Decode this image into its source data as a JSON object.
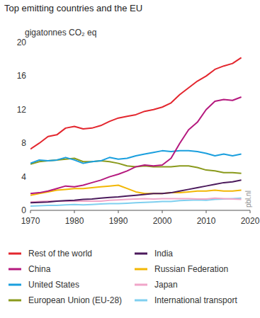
{
  "chart_data": {
    "type": "line",
    "title": "Top emitting countries and the EU",
    "y_label": "gigatonnes CO₂ eq",
    "annotations": [
      "pbl.nl"
    ],
    "x": [
      1970,
      1972,
      1974,
      1976,
      1978,
      1980,
      1982,
      1984,
      1986,
      1988,
      1990,
      1992,
      1994,
      1996,
      1998,
      2000,
      2002,
      2004,
      2006,
      2008,
      2010,
      2012,
      2014,
      2016,
      2018
    ],
    "xlim": [
      1970,
      2020
    ],
    "xticks": [
      1970,
      1980,
      1990,
      2000,
      2010,
      2020
    ],
    "ylim": [
      0,
      20
    ],
    "yticks": [
      0,
      4,
      8,
      12,
      16,
      20
    ],
    "grid": false,
    "legend": "bottom",
    "series": [
      {
        "name": "Rest of the world",
        "color": "#e3262e",
        "values": [
          7.3,
          8.0,
          8.8,
          9.0,
          9.8,
          10.0,
          9.7,
          9.8,
          10.1,
          10.6,
          11.0,
          11.2,
          11.4,
          11.8,
          12.0,
          12.3,
          12.8,
          13.8,
          14.6,
          15.4,
          16.0,
          16.8,
          17.2,
          17.5,
          18.2
        ]
      },
      {
        "name": "China",
        "color": "#b5197e",
        "values": [
          2.0,
          2.1,
          2.3,
          2.6,
          2.9,
          2.8,
          3.0,
          3.3,
          3.6,
          4.0,
          4.3,
          4.7,
          5.2,
          5.4,
          5.3,
          5.4,
          6.2,
          8.0,
          9.6,
          10.5,
          12.0,
          13.0,
          13.2,
          13.1,
          13.5
        ]
      },
      {
        "name": "United States",
        "color": "#1a9fde",
        "values": [
          5.6,
          6.0,
          5.9,
          6.0,
          6.3,
          6.0,
          5.6,
          5.8,
          5.9,
          6.3,
          6.1,
          6.2,
          6.5,
          6.7,
          6.9,
          7.1,
          7.0,
          7.1,
          7.1,
          7.0,
          6.8,
          6.5,
          6.7,
          6.5,
          6.7
        ]
      },
      {
        "name": "European Union (EU-28)",
        "color": "#8a9a1c",
        "values": [
          5.5,
          5.8,
          5.9,
          6.0,
          6.1,
          6.2,
          5.8,
          5.8,
          5.9,
          5.8,
          5.6,
          5.3,
          5.2,
          5.3,
          5.2,
          5.2,
          5.2,
          5.3,
          5.3,
          5.1,
          4.8,
          4.7,
          4.5,
          4.5,
          4.4
        ]
      },
      {
        "name": "India",
        "color": "#4b1a5c",
        "values": [
          0.9,
          0.95,
          1.0,
          1.1,
          1.15,
          1.2,
          1.3,
          1.35,
          1.45,
          1.55,
          1.6,
          1.7,
          1.8,
          1.9,
          2.0,
          2.0,
          2.1,
          2.3,
          2.5,
          2.7,
          2.9,
          3.1,
          3.3,
          3.4,
          3.6
        ]
      },
      {
        "name": "Russian Federation",
        "color": "#f2b705",
        "values": [
          1.8,
          2.0,
          2.2,
          2.4,
          2.5,
          2.6,
          2.6,
          2.7,
          2.8,
          2.9,
          3.0,
          2.6,
          2.2,
          2.0,
          2.0,
          2.0,
          2.1,
          2.1,
          2.2,
          2.3,
          2.3,
          2.4,
          2.3,
          2.3,
          2.4
        ]
      },
      {
        "name": "Japan",
        "color": "#f0a5c8",
        "values": [
          1.0,
          1.05,
          1.1,
          1.1,
          1.1,
          1.1,
          1.1,
          1.1,
          1.1,
          1.2,
          1.25,
          1.3,
          1.35,
          1.4,
          1.35,
          1.4,
          1.4,
          1.4,
          1.4,
          1.35,
          1.35,
          1.45,
          1.4,
          1.35,
          1.3
        ]
      },
      {
        "name": "International transport",
        "color": "#7fcfef",
        "values": [
          0.5,
          0.55,
          0.6,
          0.6,
          0.65,
          0.7,
          0.65,
          0.7,
          0.75,
          0.8,
          0.8,
          0.85,
          0.9,
          0.95,
          1.0,
          1.05,
          1.05,
          1.15,
          1.2,
          1.25,
          1.2,
          1.3,
          1.35,
          1.4,
          1.45
        ]
      }
    ]
  }
}
